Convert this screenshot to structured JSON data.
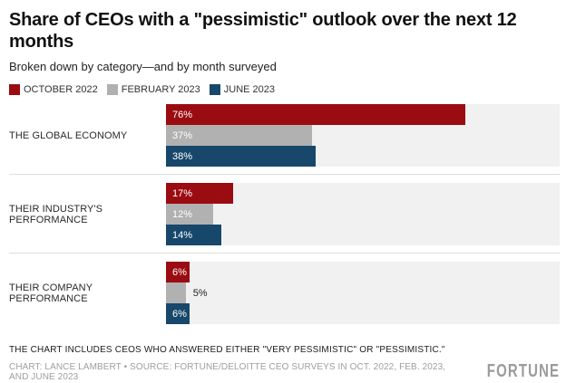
{
  "header": {
    "title": "Share of CEOs with a \"pessimistic\" outlook over the next 12 months",
    "subtitle": "Broken down by category—and by month surveyed"
  },
  "legend": [
    {
      "label": "OCTOBER 2022",
      "color": "#9a0c11"
    },
    {
      "label": "FEBRUARY 2023",
      "color": "#b1b1b1"
    },
    {
      "label": "JUNE 2023",
      "color": "#17486b"
    }
  ],
  "chart_data": {
    "type": "bar",
    "orientation": "horizontal",
    "title": "Share of CEOs with a \"pessimistic\" outlook over the next 12 months",
    "subtitle": "Broken down by category—and by month surveyed",
    "categories": [
      "THE GLOBAL ECONOMY",
      "THEIR INDUSTRY'S PERFORMANCE",
      "THEIR COMPANY PERFORMANCE"
    ],
    "series": [
      {
        "name": "OCTOBER 2022",
        "color": "#9a0c11",
        "values": [
          76,
          17,
          6
        ]
      },
      {
        "name": "FEBRUARY 2023",
        "color": "#b1b1b1",
        "values": [
          37,
          12,
          5
        ]
      },
      {
        "name": "JUNE 2023",
        "color": "#17486b",
        "values": [
          38,
          14,
          6
        ]
      }
    ],
    "value_suffix": "%",
    "xlim": [
      0,
      100
    ],
    "grid": false,
    "legend_position": "top",
    "track_color": "#f1f1f1",
    "bar_label_color_inside": "#ffffff",
    "bar_label_color_outside": "#222222"
  },
  "footer": {
    "note": "THE CHART INCLUDES CEOS WHO ANSWERED EITHER \"VERY PESSIMISTIC\" OR \"PESSIMISTIC.\"",
    "credit": "CHART: LANCE LAMBERT • SOURCE: FORTUNE/DELOITTE CEO SURVEYS IN OCT. 2022, FEB. 2023, AND JUNE 2023",
    "logo": "FORTUNE"
  }
}
